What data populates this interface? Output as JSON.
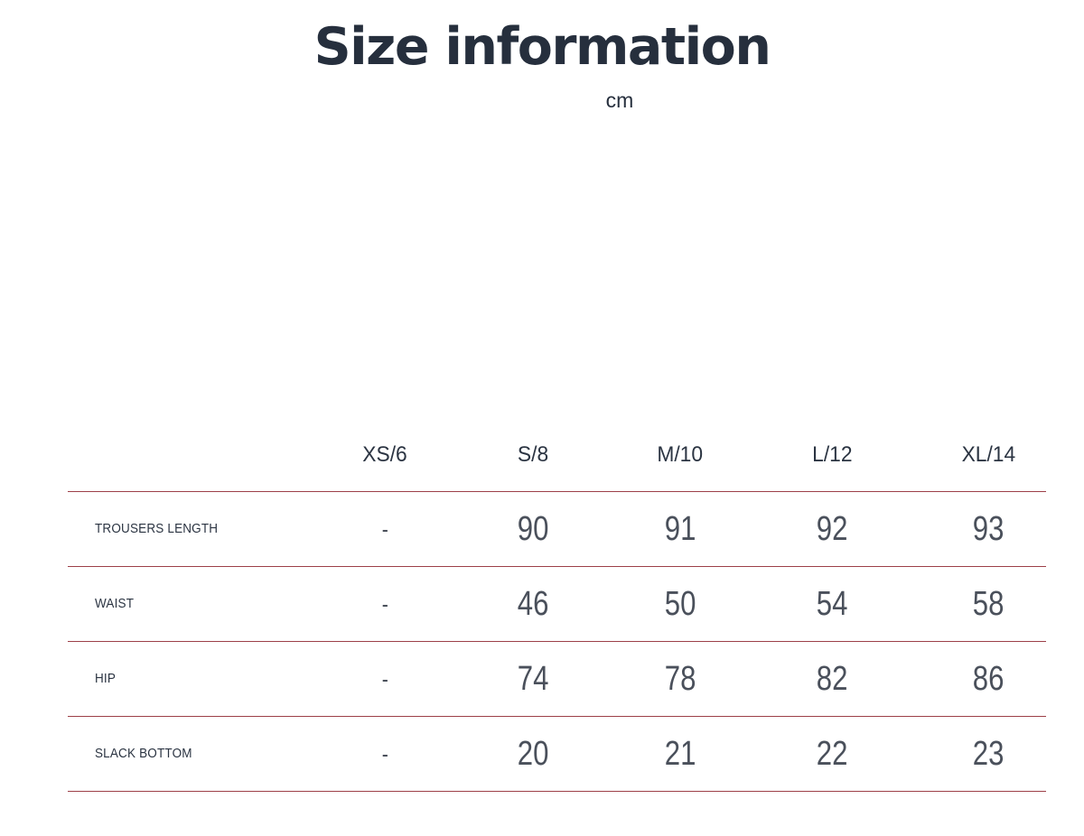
{
  "page": {
    "title": "Size information",
    "unit_label": "cm"
  },
  "colors": {
    "title": "#262f3d",
    "value": "#4a505b",
    "divider": "#9d4048"
  },
  "size_table": {
    "columns": [
      "XS/6",
      "S/8",
      "M/10",
      "L/12",
      "XL/14"
    ],
    "rows": [
      {
        "label": "TROUSERS LENGTH",
        "values": [
          "-",
          "90",
          "91",
          "92",
          "93"
        ]
      },
      {
        "label": "WAIST",
        "values": [
          "-",
          "46",
          "50",
          "54",
          "58"
        ]
      },
      {
        "label": "HIP",
        "values": [
          "-",
          "74",
          "78",
          "82",
          "86"
        ]
      },
      {
        "label": "SLACK BOTTOM",
        "values": [
          "-",
          "20",
          "21",
          "22",
          "23"
        ]
      }
    ]
  }
}
